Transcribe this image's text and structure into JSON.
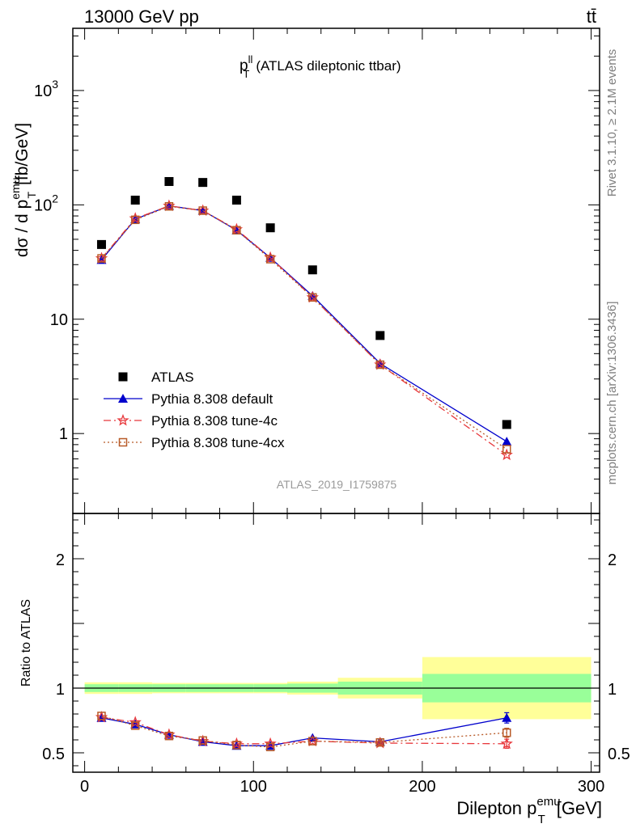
{
  "header": {
    "left": "13000 GeV pp",
    "right": "tt̄"
  },
  "side_labels": {
    "rivet": "Rivet 3.1.10, ≥ 2.1M events",
    "mcplots": "mcplots.cern.ch [arXiv:1306.3436]"
  },
  "watermark": "ATLAS_2019_I1759875",
  "chart_data": [
    {
      "type": "scatter",
      "panel": "main",
      "title": "p_T^ll (ATLAS dileptonic ttbar)",
      "title_main": "p",
      "title_sub": "T",
      "title_sup": "ll",
      "title_rest": "(ATLAS dileptonic ttbar)",
      "ylabel": "dσ / d p_T^emu [fb/GeV]",
      "yscale": "log",
      "ylim": [
        0.2,
        3500
      ],
      "xlim": [
        -7,
        305
      ],
      "grid": false,
      "legend_position": "bottom-left",
      "yticks": [
        {
          "v": 1,
          "label": "1"
        },
        {
          "v": 10,
          "label": "10"
        },
        {
          "v": 100,
          "label": "10",
          "exp": "2"
        },
        {
          "v": 1000,
          "label": "10",
          "exp": "3"
        }
      ],
      "series": [
        {
          "name": "ATLAS",
          "color": "#000000",
          "marker": "square",
          "x": [
            10,
            30,
            50,
            70,
            90,
            110,
            135,
            175,
            250
          ],
          "values": [
            45,
            110,
            160,
            157,
            110,
            63,
            27,
            7.2,
            1.2
          ]
        },
        {
          "name": "Pythia 8.308 default",
          "color": "#0000cc",
          "marker": "triangle",
          "line": "solid",
          "x": [
            10,
            30,
            50,
            70,
            90,
            110,
            135,
            175,
            250
          ],
          "values": [
            33,
            75,
            98,
            89,
            60,
            34.5,
            16,
            4.1,
            0.85
          ]
        },
        {
          "name": "Pythia 8.308 tune-4c",
          "color": "#e8383c",
          "marker": "star",
          "line": "dashdot",
          "x": [
            10,
            30,
            50,
            70,
            90,
            110,
            135,
            175,
            250
          ],
          "values": [
            34,
            76,
            98,
            89,
            61,
            34.5,
            15.5,
            4.0,
            0.65
          ]
        },
        {
          "name": "Pythia 8.308 tune-4cx",
          "color": "#b85a28",
          "marker": "open-square",
          "line": "dotted",
          "x": [
            10,
            30,
            50,
            70,
            90,
            110,
            135,
            175,
            250
          ],
          "values": [
            34,
            74,
            97,
            89,
            60,
            33.5,
            15.5,
            4.0,
            0.73
          ]
        }
      ]
    },
    {
      "type": "scatter",
      "panel": "ratio",
      "ylabel": "Ratio to ATLAS",
      "xlabel": "Dilepton p_T^emu [GeV]",
      "xlabel_main": "Dilepton p",
      "xlabel_sub": "T",
      "xlabel_sup": "emu",
      "xlabel_unit": "[GeV]",
      "ylim": [
        0.35,
        2.35
      ],
      "xlim": [
        -7,
        305
      ],
      "xticks": [
        0,
        100,
        200,
        300
      ],
      "yticks": [
        0.5,
        1,
        2
      ],
      "bins": [
        0,
        20,
        40,
        60,
        80,
        100,
        120,
        150,
        200,
        300
      ],
      "band_inner": [
        0.03,
        0.03,
        0.03,
        0.03,
        0.03,
        0.03,
        0.035,
        0.05,
        0.11
      ],
      "band_outer": [
        0.045,
        0.045,
        0.04,
        0.04,
        0.04,
        0.04,
        0.05,
        0.08,
        0.24
      ],
      "band_inner_color": "#99ff99",
      "band_outer_color": "#ffff99",
      "series": [
        {
          "name": "Pythia 8.308 default",
          "color": "#0000cc",
          "marker": "triangle",
          "line": "solid",
          "x": [
            10,
            30,
            50,
            70,
            90,
            110,
            135,
            175,
            250
          ],
          "values": [
            0.77,
            0.72,
            0.64,
            0.585,
            0.555,
            0.555,
            0.615,
            0.585,
            0.77
          ],
          "errors": [
            0,
            0,
            0,
            0,
            0,
            0,
            0,
            0.02,
            0.04
          ]
        },
        {
          "name": "Pythia 8.308 tune-4c",
          "color": "#e8383c",
          "marker": "star",
          "line": "dashdot",
          "x": [
            10,
            30,
            50,
            70,
            90,
            110,
            135,
            175,
            250
          ],
          "values": [
            0.775,
            0.735,
            0.64,
            0.59,
            0.57,
            0.57,
            0.59,
            0.575,
            0.57
          ],
          "errors": [
            0,
            0,
            0,
            0,
            0,
            0,
            0,
            0.015,
            0.035
          ]
        },
        {
          "name": "Pythia 8.308 tune-4cx",
          "color": "#b85a28",
          "marker": "open-square",
          "line": "dotted",
          "x": [
            10,
            30,
            50,
            70,
            90,
            110,
            135,
            175,
            250
          ],
          "values": [
            0.785,
            0.71,
            0.63,
            0.595,
            0.56,
            0.545,
            0.59,
            0.58,
            0.655
          ],
          "errors": [
            0,
            0,
            0,
            0,
            0,
            0,
            0,
            0.015,
            0.035
          ]
        }
      ]
    }
  ]
}
